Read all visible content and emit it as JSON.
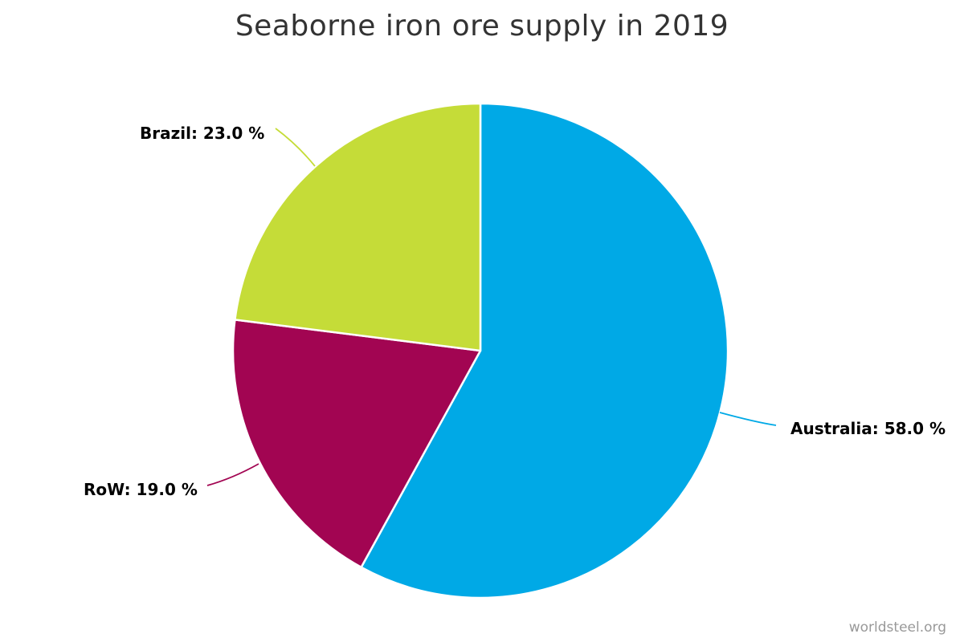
{
  "chart_data": {
    "type": "pie",
    "title": "Seaborne iron ore supply in 2019",
    "unit": "%",
    "start_angle_deg": 0,
    "slices": [
      {
        "label": "Australia",
        "value": 58.0,
        "display": "Australia: 58.0 %",
        "color": "#00a9e6"
      },
      {
        "label": "RoW",
        "value": 19.0,
        "display": "RoW: 19.0 %",
        "color": "#a20552"
      },
      {
        "label": "Brazil",
        "value": 23.0,
        "display": "Brazil: 23.0 %",
        "color": "#c5dc38"
      }
    ]
  },
  "credit": "worldsteel.org"
}
